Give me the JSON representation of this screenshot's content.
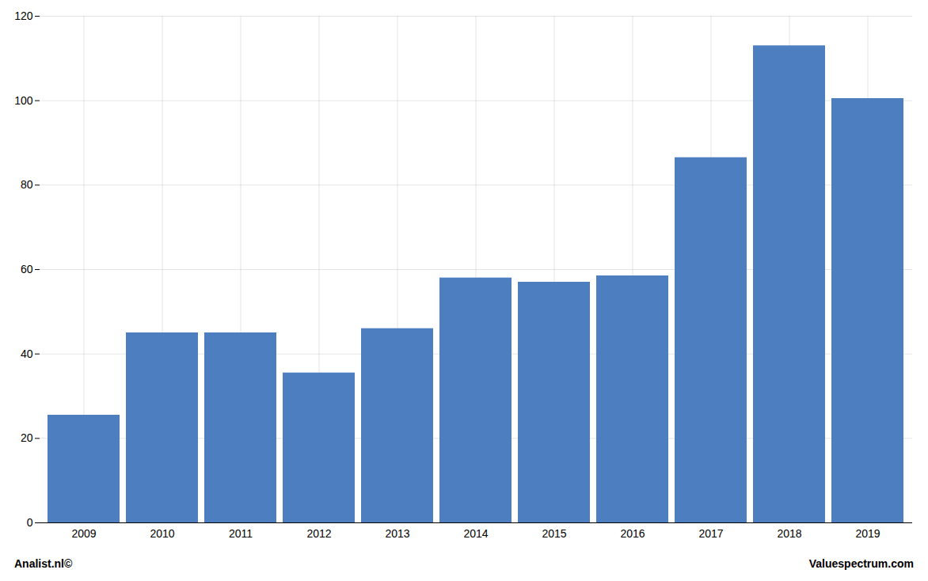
{
  "chart_data": {
    "type": "bar",
    "categories": [
      "2009",
      "2010",
      "2011",
      "2012",
      "2013",
      "2014",
      "2015",
      "2016",
      "2017",
      "2018",
      "2019"
    ],
    "values": [
      25.5,
      45.0,
      45.0,
      35.5,
      46.0,
      58.0,
      57.0,
      58.5,
      86.5,
      113.0,
      100.5
    ],
    "color": "#4d7ebf",
    "ylim": [
      0,
      120
    ],
    "yticks": [
      0,
      20,
      40,
      60,
      80,
      100,
      120
    ],
    "grid": true,
    "annotations": [
      "Analist.nl©",
      "Valuespectrum.com"
    ]
  }
}
